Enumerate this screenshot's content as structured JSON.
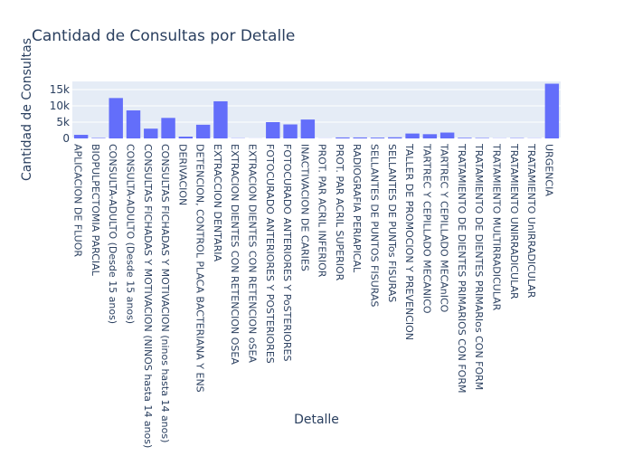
{
  "chart_data": {
    "type": "bar",
    "title": "Cantidad de Consultas por Detalle",
    "xlabel": "Detalle",
    "ylabel": "Cantidad de Consultas",
    "ylim": [
      0,
      17500
    ],
    "yticks": [
      {
        "value": 0,
        "label": "0"
      },
      {
        "value": 5000,
        "label": "5k"
      },
      {
        "value": 10000,
        "label": "10k"
      },
      {
        "value": 15000,
        "label": "15k"
      }
    ],
    "grid": true,
    "legend": "none",
    "bar_color": "#636efa",
    "plot_bg": "#e5ecf6",
    "categories": [
      "APLICACION DE FLUOR",
      "BIOPULPECTOMIA PARCIAL",
      "CONSULTA-ADULTO (Desde 15 anos)",
      "CONSULTA-ADULTO (Desde 15 anos)",
      "CONSULTAS FICHADAS Y MOTIVACION (NINOS hasta 14 anos)",
      "CONSULTAS FICHADAS Y MOTIVACION (ninos hasta 14 anos)",
      "DERIVACION",
      "DETENCION, CONTROL PLACA BACTERIANA Y ENS",
      "EXTRACCION DENTARIA",
      "EXTRACION DIENTES CON RETENCION OSEA",
      "EXTRACION DIENTES CON RETENCION oSEA",
      "FOTOCURADO ANTERIORES Y POSTERIORES",
      "FOTOCURADO ANTERIORES Y PoSTERIORES",
      "INACTIVACION DE CARIES",
      "PROT. PAR ACRIL INFERIOR",
      "PROT. PAR ACRIL SUPERIOR",
      "RADIOGRAFIA PERIAPICAL",
      "SELLANTES DE PUNTOS FISURAS",
      "SELLANTES DE PUNTos FISURAS",
      "TALLER DE PROMOCION Y PREVENCION",
      "TARTREC Y CEPILLADO MECANICO",
      "TARTREC Y CEPILLADO MECAnICO",
      "TRATAMIENTO DE DIENTES PRIMARIOS CON FORM",
      "TRATAMIENTO DE DIENTES PRIMARIos CON FORM",
      "TRATAMIENTO MULTIRRADICULAR",
      "TRATAMIENTO UNIRRADICULAR",
      "TRATAMIENTO UnIRRADICULAR",
      "URGENCIA"
    ],
    "values": [
      1100,
      150,
      12400,
      8600,
      3000,
      6300,
      550,
      4200,
      11400,
      80,
      30,
      5000,
      4300,
      5800,
      40,
      300,
      300,
      250,
      350,
      1500,
      1300,
      1800,
      200,
      150,
      60,
      120,
      60,
      16800
    ]
  }
}
